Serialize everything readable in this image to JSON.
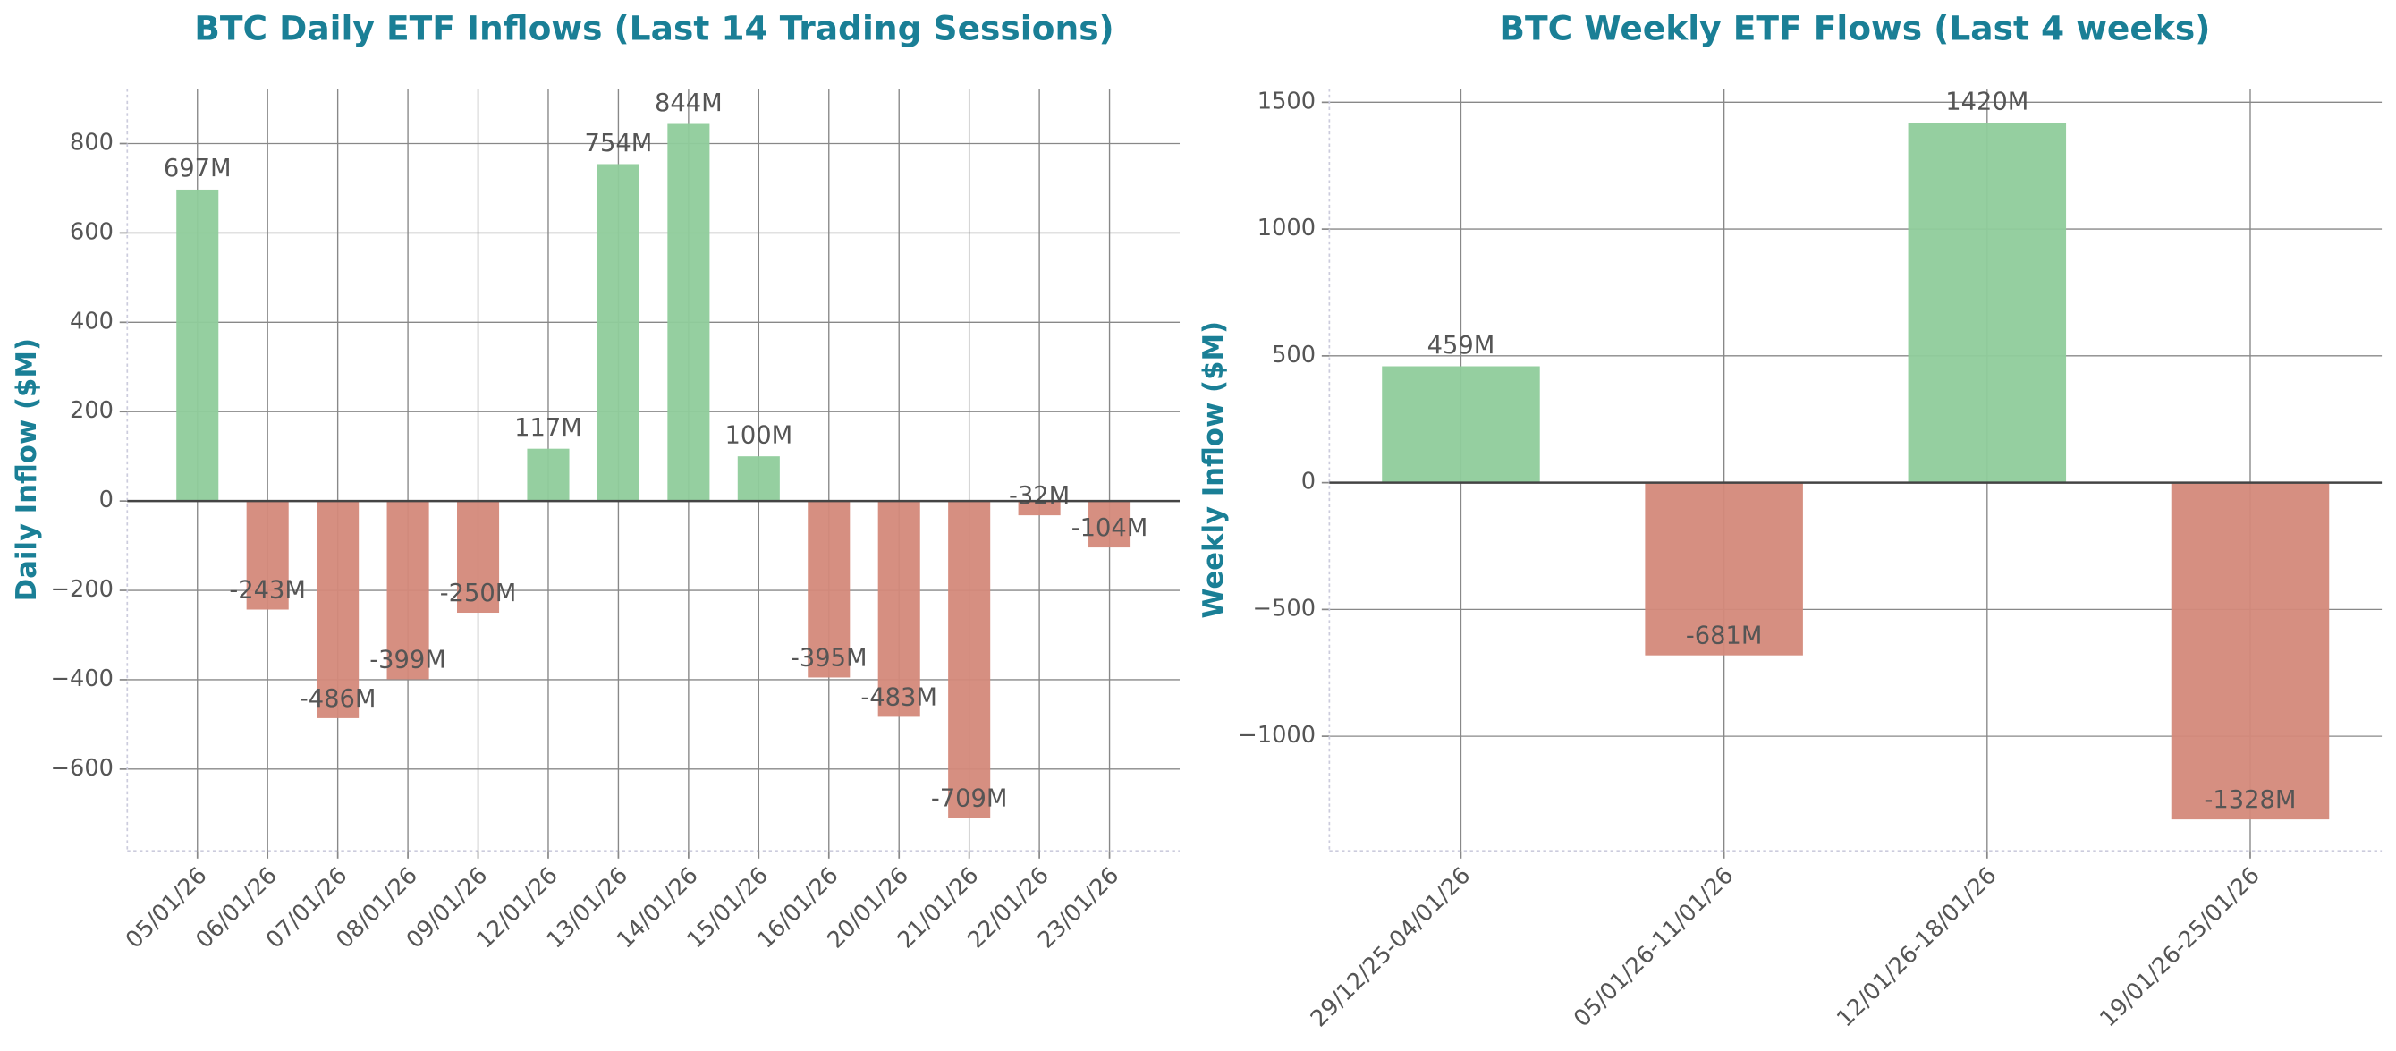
{
  "chart_data": [
    {
      "type": "bar",
      "title": "BTC Daily ETF Inflows (Last 14 Trading Sessions)",
      "y_label": "Daily Inflow ($M)",
      "categories": [
        "05/01/26",
        "06/01/26",
        "07/01/26",
        "08/01/26",
        "09/01/26",
        "12/01/26",
        "13/01/26",
        "14/01/26",
        "15/01/26",
        "16/01/26",
        "20/01/26",
        "21/01/26",
        "22/01/26",
        "23/01/26"
      ],
      "values": [
        697,
        -243,
        -486,
        -399,
        -250,
        117,
        754,
        844,
        100,
        -395,
        -483,
        -709,
        -32,
        -104
      ],
      "value_labels": [
        "697M",
        "-243M",
        "-486M",
        "-399M",
        "-250M",
        "117M",
        "754M",
        "844M",
        "100M",
        "-395M",
        "-483M",
        "-709M",
        "-32M",
        "-104M"
      ],
      "positive_color": "#8fcc9b",
      "negative_color": "#d4897a",
      "ylim": [
        -783,
        923
      ],
      "yticks": [
        {
          "value": -600,
          "label": "−600"
        },
        {
          "value": -400,
          "label": "−400"
        },
        {
          "value": -200,
          "label": "−200"
        },
        0,
        200,
        400,
        600,
        800
      ],
      "grid": true
    },
    {
      "type": "bar",
      "title": "BTC Weekly ETF Flows (Last 4 weeks)",
      "y_label": "Weekly Inflow ($M)",
      "categories": [
        "29/12/25-04/01/26",
        "05/01/26-11/01/26",
        "12/01/26-18/01/26",
        "19/01/26-25/01/26"
      ],
      "values": [
        459,
        -681,
        1420,
        -1328
      ],
      "value_labels": [
        "459M",
        "-681M",
        "1420M",
        "-1328M"
      ],
      "positive_color": "#8fcc9b",
      "negative_color": "#d4897a",
      "ylim": [
        -1452,
        1554
      ],
      "yticks": [
        {
          "value": -1000,
          "label": "−1000"
        },
        {
          "value": -500,
          "label": "−500"
        },
        0,
        500,
        1000,
        1500
      ],
      "grid": true
    }
  ]
}
